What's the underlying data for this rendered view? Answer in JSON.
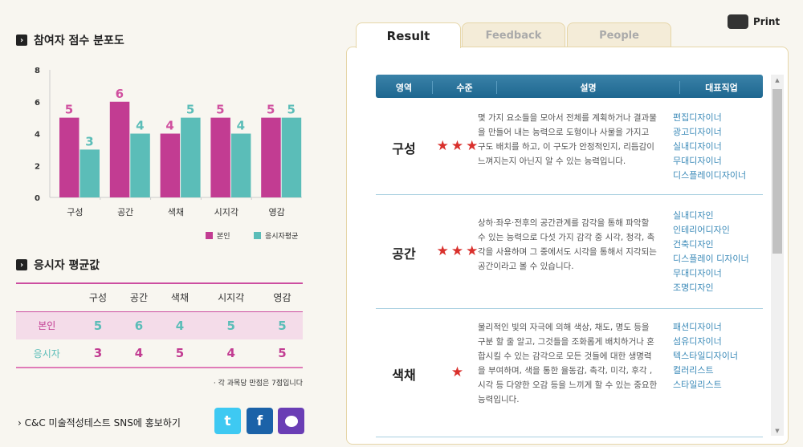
{
  "score_section": {
    "title": "참여자 점수 분포도"
  },
  "chart_data": {
    "type": "bar",
    "categories": [
      "구성",
      "공간",
      "색채",
      "시지각",
      "영감"
    ],
    "series": [
      {
        "name": "본인",
        "values": [
          5,
          6,
          4,
          5,
          5
        ],
        "color": "#c23c92"
      },
      {
        "name": "응시자평균",
        "values": [
          3,
          4,
          5,
          4,
          5
        ],
        "color": "#5bbdb8"
      }
    ],
    "ylim": [
      0,
      8
    ],
    "yticks": [
      "0",
      "2",
      "4",
      "6",
      "8"
    ],
    "legend": "bottom-right"
  },
  "avg_section": {
    "title": "응시자 평균값",
    "columns": [
      "구성",
      "공간",
      "색채",
      "시지각",
      "영감"
    ],
    "rows": [
      {
        "label": "본인",
        "values": [
          "5",
          "6",
          "4",
          "5",
          "5"
        ]
      },
      {
        "label": "응시자",
        "values": [
          "3",
          "4",
          "5",
          "4",
          "5"
        ]
      }
    ],
    "note": "· 각 과목당 만점은 7점입니다"
  },
  "sns": {
    "label": "C&C 미술적성테스트 SNS에 홍보하기",
    "twitter": "t",
    "facebook": "f"
  },
  "print": {
    "label": "Print"
  },
  "tabs": [
    {
      "label": "Result"
    },
    {
      "label": "Feedback"
    },
    {
      "label": "People"
    }
  ],
  "result_table": {
    "headers": [
      "영역",
      "수준",
      "설명",
      "대표직업"
    ],
    "rows": [
      {
        "area": "구성",
        "stars": "★★★",
        "desc": "몇 가지 요소들을 모아서 전체를 계획하거나 결과물을 만들어 내는 능력으로 도형이나 사물을 가지고 구도 배치를 하고, 이 구도가 안정적인지, 리듬감이 느껴지는지 아닌지 알 수 있는 능력입니다.",
        "jobs": [
          "편집디자이너",
          "광고디자이너",
          "실내디자이너",
          "무대디자이너",
          "디스플레이디자이너"
        ]
      },
      {
        "area": "공간",
        "stars": "★★★",
        "desc": "상하·좌우·전후의 공간관계를 감각을 통해 파악할 수 있는 능력으로 다섯 가지 감각 중 시각, 청각, 촉각을 사용하며 그 중에서도 시각을 통해서 지각되는 공간이라고 볼 수 있습니다.",
        "jobs": [
          "실내디자인",
          "인테리어디자인",
          "건축디자인",
          "디스플레이 디자이너",
          "무대디자이너",
          "조명디자인"
        ]
      },
      {
        "area": "색채",
        "stars": "★",
        "desc": "물리적인 빛의 자극에 의해 색상, 채도, 명도 등을 구분 할 줄 알고, 그것들을 조화롭게 배치하거나 혼합시킬 수 있는 감각으로 모든 것들에 대한 생명력을 부여하며, 색을 통한 율동감, 촉각, 미각, 후각 , 시각 등 다양한 오감 등을 느끼게 할 수 있는 중요한 능력입니다.",
        "jobs": [
          "패션디자이너",
          "섬유디자이너",
          "텍스타일디자이너",
          "컬러리스트",
          "스타일리스트"
        ]
      }
    ]
  }
}
